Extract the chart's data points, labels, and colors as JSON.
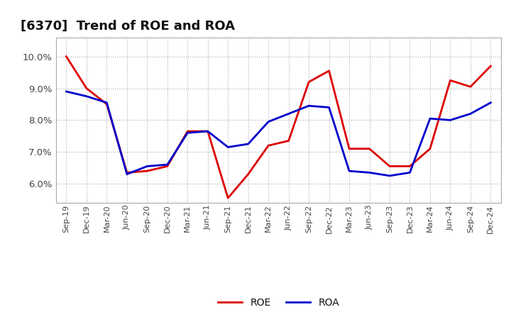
{
  "title": "[6370]  Trend of ROE and ROA",
  "x_labels": [
    "Sep-19",
    "Dec-19",
    "Mar-20",
    "Jun-20",
    "Sep-20",
    "Dec-20",
    "Mar-21",
    "Jun-21",
    "Sep-21",
    "Dec-21",
    "Mar-22",
    "Jun-22",
    "Sep-22",
    "Dec-22",
    "Mar-23",
    "Jun-23",
    "Sep-23",
    "Dec-23",
    "Mar-24",
    "Jun-24",
    "Sep-24",
    "Dec-24"
  ],
  "roe": [
    10.0,
    9.0,
    8.5,
    6.35,
    6.4,
    6.55,
    7.65,
    7.65,
    5.55,
    6.3,
    7.2,
    7.35,
    9.2,
    9.55,
    7.1,
    7.1,
    6.55,
    6.55,
    7.1,
    9.25,
    9.05,
    9.7
  ],
  "roa": [
    8.9,
    8.75,
    8.55,
    6.3,
    6.55,
    6.6,
    7.6,
    7.65,
    7.15,
    7.25,
    7.95,
    8.2,
    8.45,
    8.4,
    6.4,
    6.35,
    6.25,
    6.35,
    8.05,
    8.0,
    8.2,
    8.55
  ],
  "roe_color": "#dd0000",
  "roa_color": "#0000cc",
  "bg_color": "#ffffff",
  "plot_bg_color": "#ffffff",
  "grid_color": "#aaaaaa",
  "ylim_min": 5.4,
  "ylim_max": 10.6,
  "yticks": [
    6.0,
    7.0,
    8.0,
    9.0,
    10.0
  ],
  "line_width": 2.0,
  "title_fontsize": 13,
  "tick_fontsize": 8,
  "legend_fontsize": 10
}
